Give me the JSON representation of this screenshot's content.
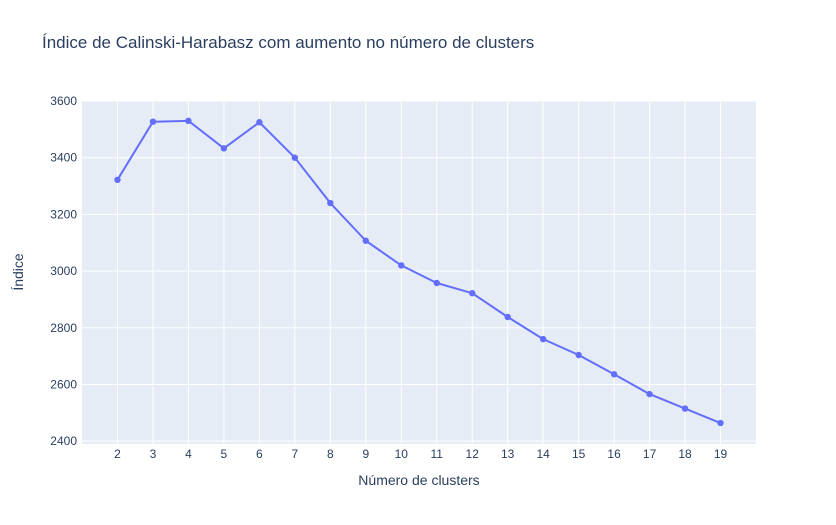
{
  "chart_data": {
    "type": "line",
    "title": "Índice de Calinski-Harabasz com aumento no número de clusters",
    "xlabel": "Número de clusters",
    "ylabel": "Índice",
    "x": [
      2,
      3,
      4,
      5,
      6,
      7,
      8,
      9,
      10,
      11,
      12,
      13,
      14,
      15,
      16,
      17,
      18,
      19
    ],
    "series": [
      {
        "values": [
          3322,
          3527,
          3530,
          3433,
          3525,
          3400,
          3240,
          3107,
          3020,
          2958,
          2922,
          2838,
          2760,
          2704,
          2636,
          2566,
          2515,
          2464
        ]
      }
    ],
    "xticks": [
      2,
      3,
      4,
      5,
      6,
      7,
      8,
      9,
      10,
      11,
      12,
      13,
      14,
      15,
      16,
      17,
      18,
      19
    ],
    "yticks": [
      2400,
      2600,
      2800,
      3000,
      3200,
      3400,
      3600
    ],
    "xlim": [
      1,
      20
    ],
    "ylim": [
      2390,
      3600
    ],
    "grid": true,
    "colors": {
      "line": "#636efa",
      "plot_bg": "#e5ecf6",
      "grid": "#ffffff",
      "text": "#2a3f5f"
    }
  }
}
